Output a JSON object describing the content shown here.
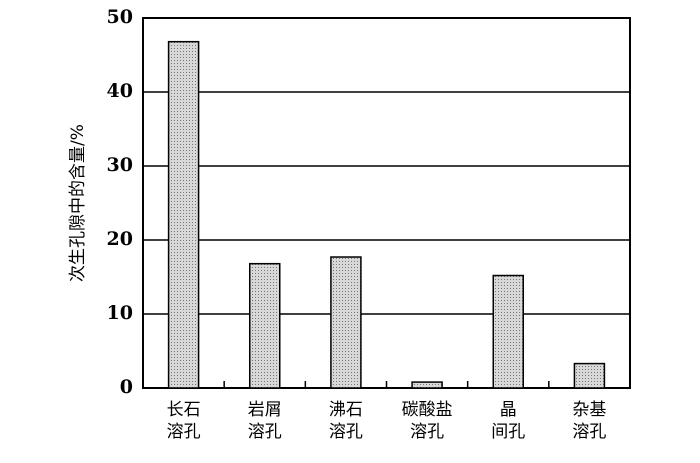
{
  "chart_data": {
    "type": "bar",
    "y_label": "次生孔隙中的含量/%",
    "categories": [
      [
        "长石",
        "溶孔"
      ],
      [
        "岩屑",
        "溶孔"
      ],
      [
        "沸石",
        "溶孔"
      ],
      [
        "碳酸盐",
        "溶孔"
      ],
      [
        "晶",
        "间孔"
      ],
      [
        "杂基",
        "溶孔"
      ]
    ],
    "values": [
      46.8,
      16.8,
      17.7,
      0.8,
      15.2,
      3.3
    ],
    "color": "#c4c4c4",
    "ylim": [
      0,
      50
    ],
    "yticks": [
      0,
      10,
      20,
      30,
      40,
      50
    ],
    "grid": true
  }
}
